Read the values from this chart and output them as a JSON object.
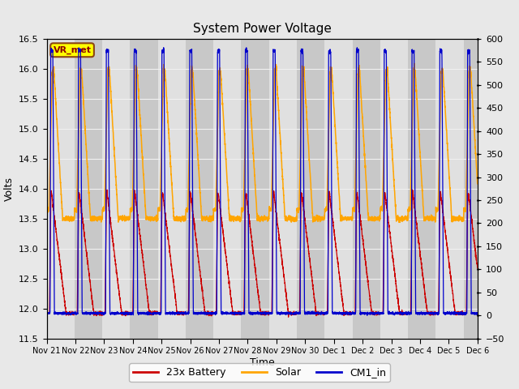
{
  "title": "System Power Voltage",
  "xlabel": "Time",
  "ylabel": "Volts",
  "ylim_left": [
    11.5,
    16.5
  ],
  "ylim_right": [
    -50,
    600
  ],
  "yticks_left": [
    11.5,
    12.0,
    12.5,
    13.0,
    13.5,
    14.0,
    14.5,
    15.0,
    15.5,
    16.0,
    16.5
  ],
  "yticks_right": [
    -50,
    0,
    50,
    100,
    150,
    200,
    250,
    300,
    350,
    400,
    450,
    500,
    550,
    600
  ],
  "bg_color": "#e8e8e8",
  "plot_bg_color": "#d8d8d8",
  "band_light": "#e0e0e0",
  "band_dark": "#c8c8c8",
  "grid_color": "#f0f0f0",
  "colors": {
    "battery": "#cc0000",
    "solar": "#ffa500",
    "cm1": "#0000cc"
  },
  "legend_labels": [
    "23x Battery",
    "Solar",
    "CM1_in"
  ],
  "vr_met_box_facecolor": "#ffff00",
  "vr_met_box_edgecolor": "#8b4513",
  "vr_met_text": "VR_met",
  "vr_met_color": "#8b0000",
  "n_days": 15.5,
  "tick_labels": [
    "Nov 21",
    "Nov 22",
    "Nov 23",
    "Nov 24",
    "Nov 25",
    "Nov 26",
    "Nov 27",
    "Nov 28",
    "Nov 29",
    "Nov 30",
    "Dec 1",
    "Dec 2",
    "Dec 3",
    "Dec 4",
    "Dec 5",
    "Dec 6"
  ]
}
